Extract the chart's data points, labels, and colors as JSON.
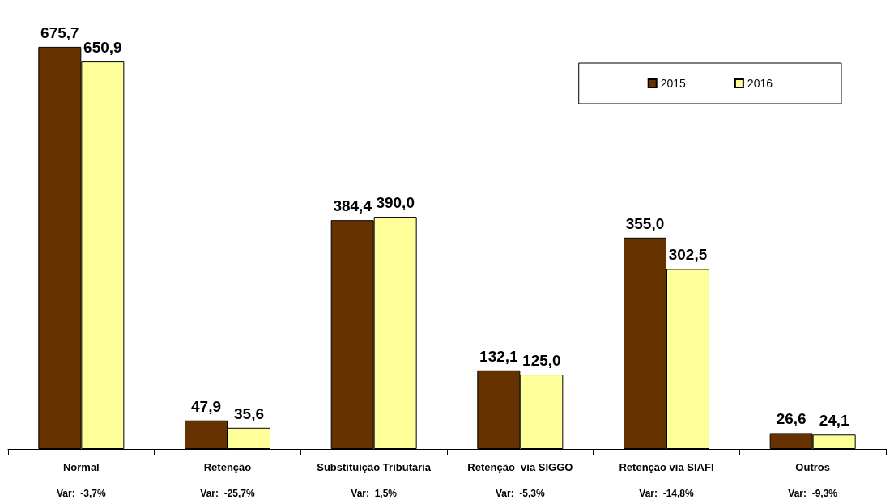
{
  "chart_data": {
    "type": "bar",
    "categories": [
      "Normal",
      "Retenção",
      "Substituição Tributária",
      "Retenção  via SIGGO",
      "Retenção via SIAFI",
      "Outros"
    ],
    "series": [
      {
        "name": "2015",
        "color": "#663300",
        "values": [
          675.7,
          47.9,
          384.4,
          132.1,
          355.0,
          26.6
        ],
        "value_labels": [
          "675,7",
          "47,9",
          "384,4",
          "132,1",
          "355,0",
          "26,6"
        ]
      },
      {
        "name": "2016",
        "color": "#ffff99",
        "values": [
          650.9,
          35.6,
          390.0,
          125.0,
          302.5,
          24.1
        ],
        "value_labels": [
          "650,9",
          "35,6",
          "390,0",
          "125,0",
          "302,5",
          "24,1"
        ]
      }
    ],
    "legend": "top right",
    "grid": false,
    "annotations": [
      "Var:  -3,7%",
      "Var:  -25,7%",
      "Var:  1,5%",
      "Var:  -5,3%",
      "Var:  -14,8%",
      "Var:  -9,3%"
    ]
  }
}
